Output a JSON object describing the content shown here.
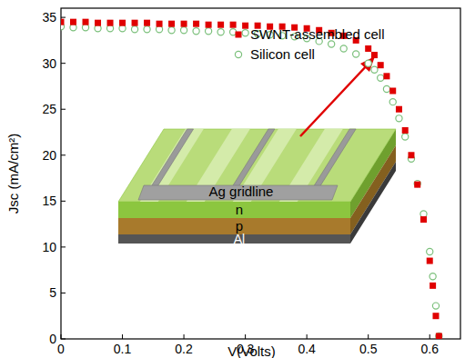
{
  "chart_data": {
    "type": "scatter",
    "x_label": "V(Volts)",
    "y_label": "Jsc (mA/cm²)",
    "x": [
      0,
      0.02,
      0.04,
      0.06,
      0.08,
      0.1,
      0.12,
      0.14,
      0.16,
      0.18,
      0.2,
      0.22,
      0.24,
      0.26,
      0.28,
      0.3,
      0.32,
      0.34,
      0.36,
      0.38,
      0.4,
      0.42,
      0.44,
      0.46,
      0.48,
      0.5,
      0.51,
      0.52,
      0.53,
      0.54,
      0.55,
      0.56,
      0.57,
      0.58,
      0.59,
      0.6,
      0.605,
      0.61,
      0.615
    ],
    "series": [
      {
        "name": "SWNT-assembled cell",
        "color": "#e00000",
        "marker": "square",
        "values": [
          34.5,
          34.5,
          34.5,
          34.4,
          34.4,
          34.4,
          34.4,
          34.4,
          34.3,
          34.3,
          34.3,
          34.3,
          34.2,
          34.2,
          34.2,
          34.1,
          34.1,
          34.0,
          34.0,
          33.9,
          33.8,
          33.6,
          33.3,
          33.0,
          32.5,
          31.6,
          30.9,
          29.8,
          28.6,
          27.0,
          25.0,
          22.7,
          20.0,
          16.8,
          13.0,
          8.5,
          5.8,
          2.5,
          0.3
        ]
      },
      {
        "name": "Silicon cell",
        "color": "#7cc07c",
        "marker": "circle",
        "values": [
          34.0,
          33.9,
          33.9,
          33.8,
          33.8,
          33.8,
          33.7,
          33.7,
          33.7,
          33.6,
          33.6,
          33.5,
          33.5,
          33.4,
          33.4,
          33.3,
          33.2,
          33.1,
          33.0,
          32.9,
          32.7,
          32.4,
          32.1,
          31.6,
          31.0,
          30.0,
          29.3,
          28.4,
          27.2,
          25.8,
          24.0,
          22.0,
          19.6,
          16.9,
          13.6,
          9.5,
          6.8,
          3.6,
          0.3
        ]
      }
    ],
    "xlim": [
      0,
      0.65
    ],
    "xticks": [
      0,
      0.1,
      0.2,
      0.3,
      0.4,
      0.5,
      0.6
    ],
    "ylim": [
      0,
      36
    ],
    "yticks": [
      0,
      5,
      10,
      15,
      20,
      25,
      30,
      35
    ],
    "legend": "upper right",
    "grid": false,
    "annotations": [
      "Ag gridline",
      "n",
      "p",
      "Al"
    ]
  }
}
